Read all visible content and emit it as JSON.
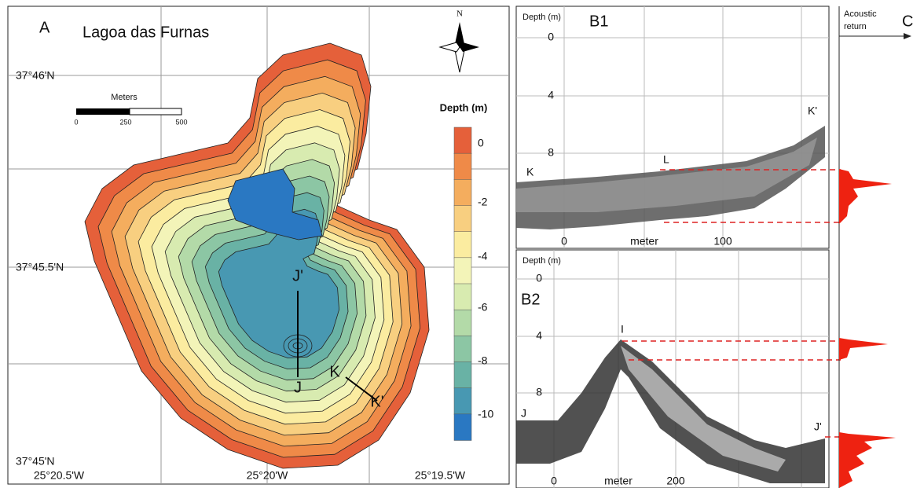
{
  "panel_a": {
    "label": "A",
    "title": "Lagoa das Furnas",
    "north": "N",
    "lat_labels": [
      "37°46'N",
      "37°45.5'N",
      "37°45'N"
    ],
    "lon_labels": [
      "25°20.5'W",
      "25°20'W",
      "25°19.5'W"
    ],
    "scale_bar": {
      "title": "Meters",
      "ticks": [
        "0",
        "250",
        "500"
      ]
    },
    "legend": {
      "title": "Depth (m)",
      "ticks": [
        "0",
        "-2",
        "-4",
        "-6",
        "-8",
        "-10"
      ]
    },
    "profile_points": [
      "J'",
      "J",
      "K",
      "K'"
    ]
  },
  "panel_b1": {
    "label": "B1",
    "y_title": "Depth (m)",
    "yticks": [
      "0",
      "4",
      "8"
    ],
    "xticks": [
      "0",
      "100"
    ],
    "x_title": "meter",
    "points": [
      "K",
      "L",
      "K'"
    ]
  },
  "panel_b2": {
    "label": "B2",
    "y_title": "Depth (m)",
    "yticks": [
      "0",
      "4",
      "8"
    ],
    "xticks": [
      "0",
      "200"
    ],
    "x_title": "meter",
    "points": [
      "J",
      "I",
      "J'"
    ]
  },
  "panel_c": {
    "label": "C",
    "title_lines": [
      "Acoustic",
      "return"
    ]
  }
}
